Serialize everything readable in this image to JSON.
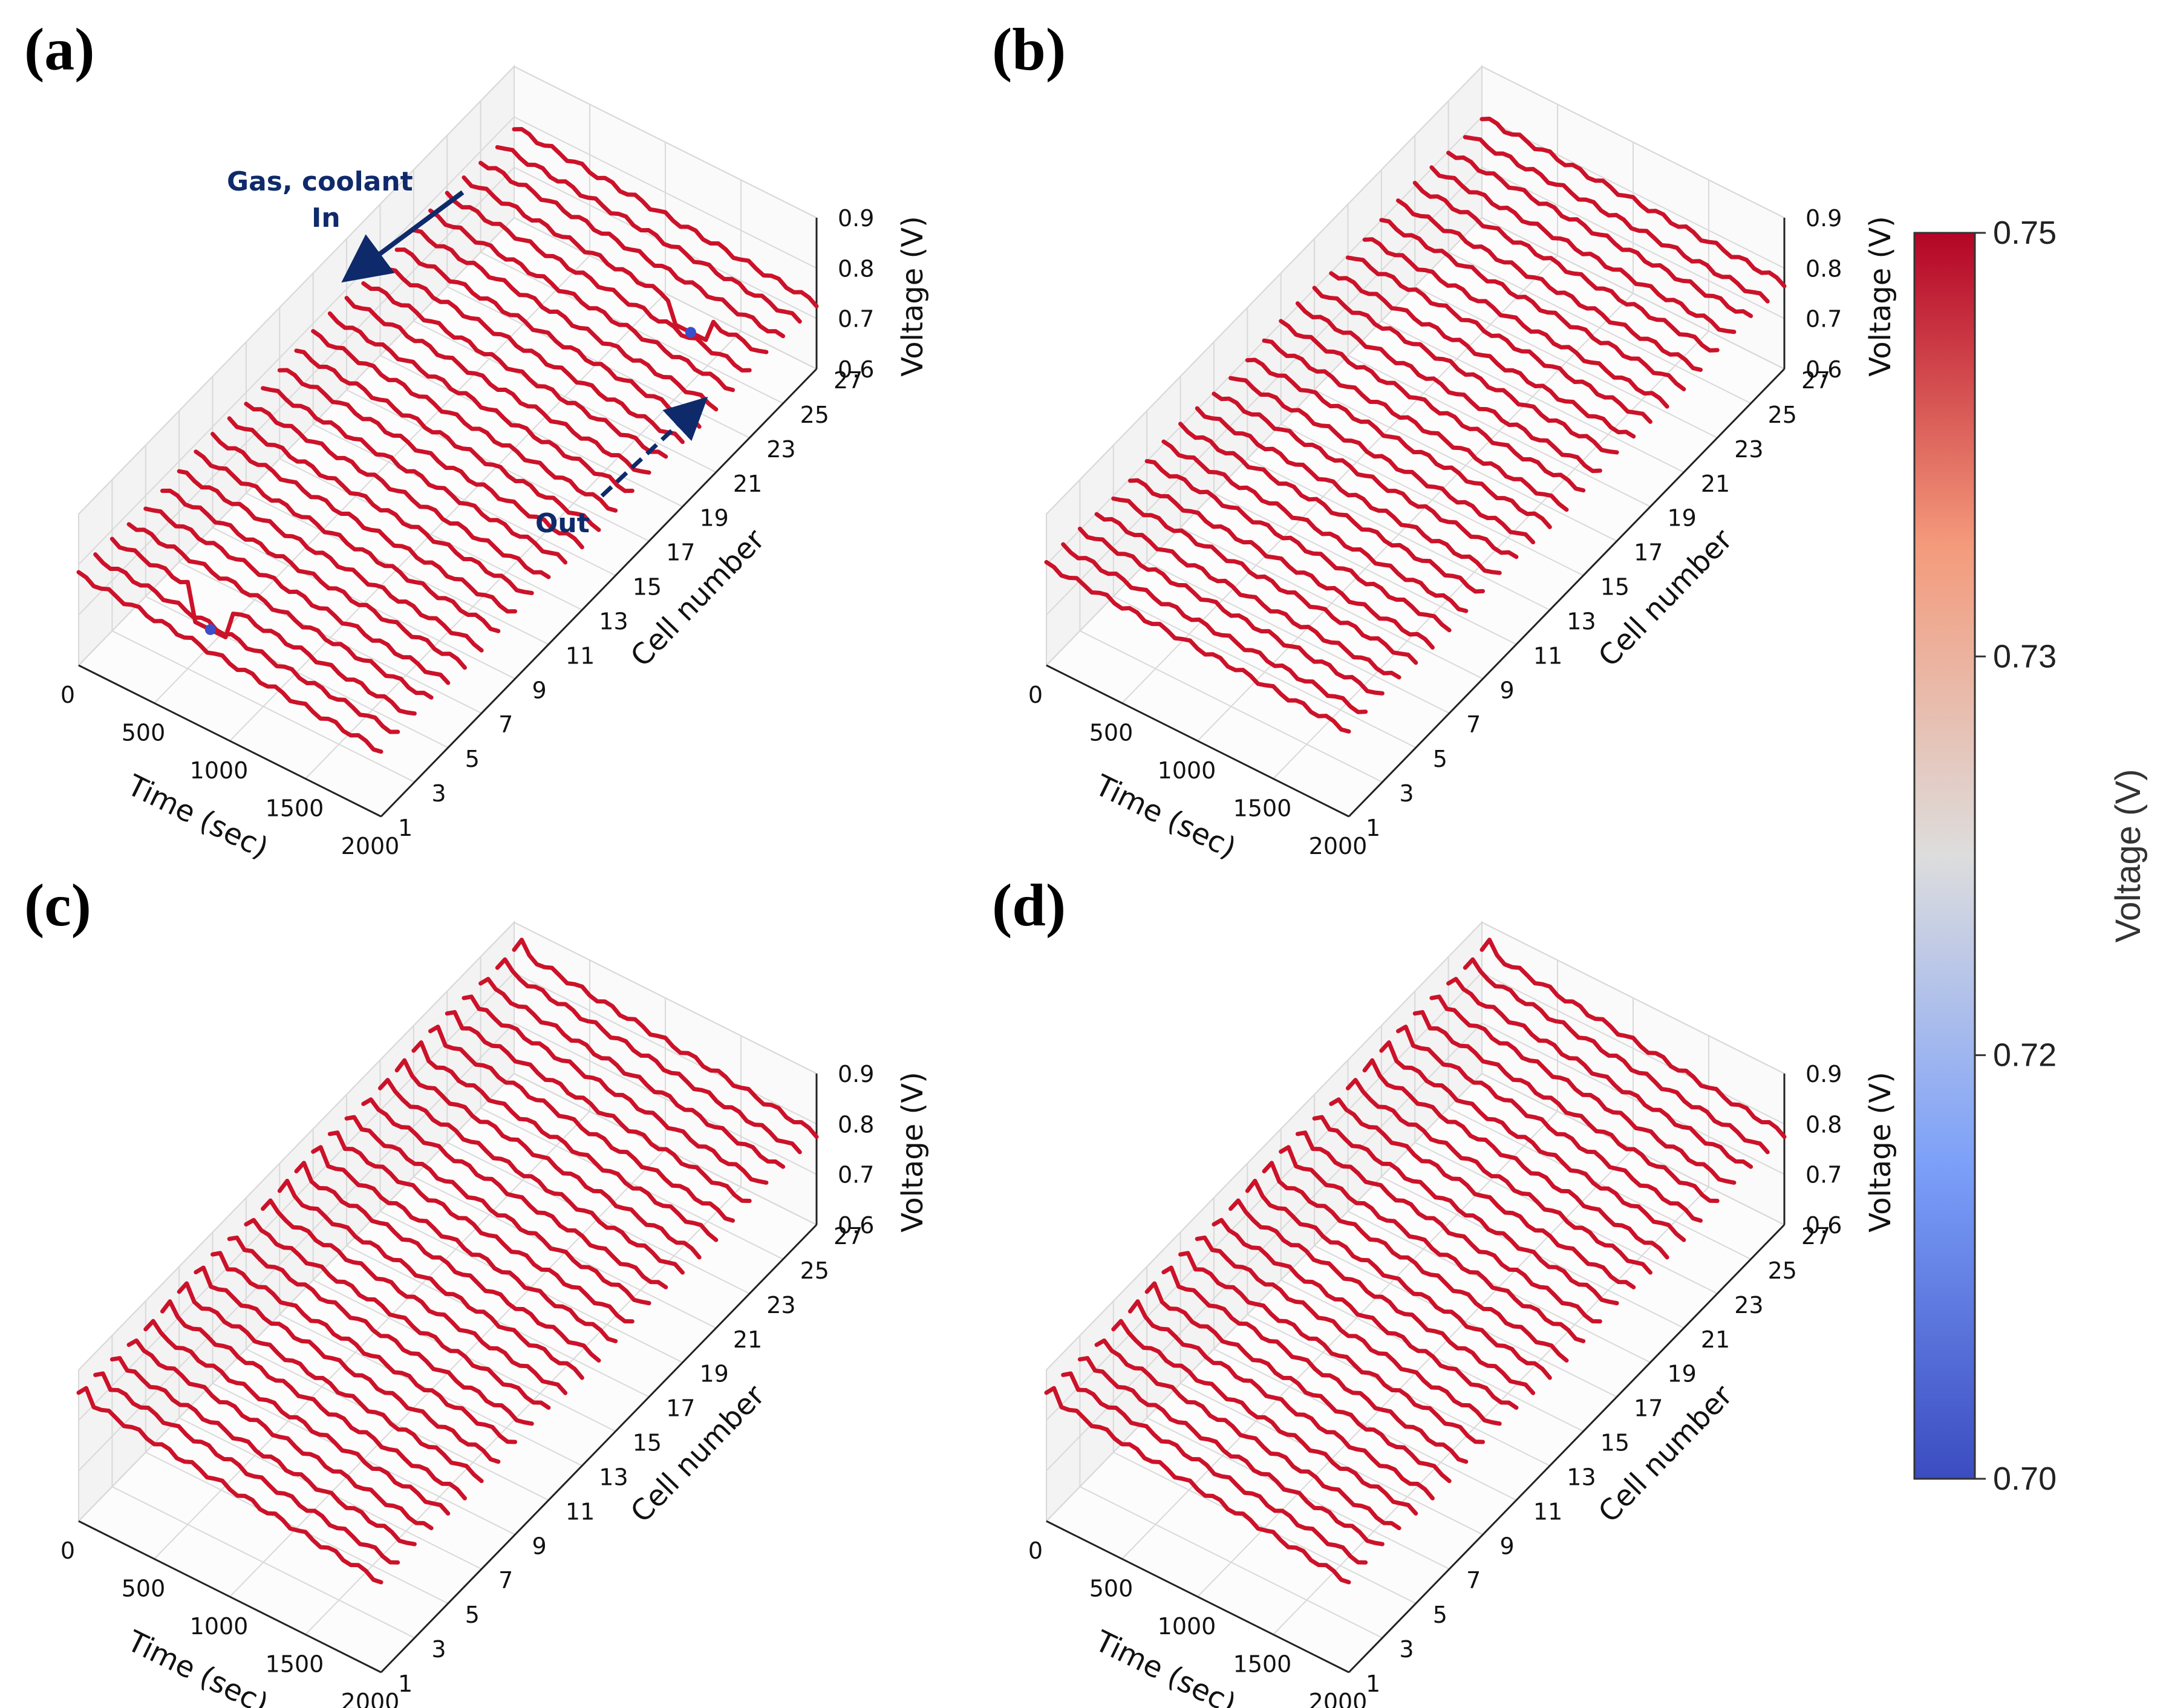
{
  "colors": {
    "red": "#cc1229",
    "mid": "#dcdcdc",
    "blue": "#3a4fc9",
    "annotation": "#0f2a6b"
  },
  "chart_data": {
    "type": "line3d",
    "colorbar": {
      "label": "Voltage (V)",
      "range": [
        0.7,
        0.75
      ],
      "ticks": [
        "0.75",
        "0.73",
        "0.72",
        "0.70"
      ],
      "tick_values": [
        0.75,
        0.733,
        0.717,
        0.7
      ]
    },
    "panels": [
      {
        "label": "(a)",
        "xlabel": "Time (sec)",
        "ylabel": "Cell number",
        "zlabel": "Voltage (V)",
        "x_ticks": [
          "0",
          "500",
          "1000",
          "1500",
          "2000"
        ],
        "y_ticks": [
          "1",
          "3",
          "5",
          "7",
          "9",
          "11",
          "13",
          "15",
          "17",
          "19",
          "21",
          "23",
          "25",
          "27"
        ],
        "z_ticks": [
          "0.6",
          "0.7",
          "0.8",
          "0.9"
        ],
        "xlim": [
          0,
          2000
        ],
        "ylim": [
          1,
          27
        ],
        "zlim": [
          0.6,
          0.9
        ],
        "cells": 27,
        "start_voltage": 0.78,
        "end_voltage": 0.73,
        "annotations": {
          "gas_in_1": "Gas, coolant",
          "gas_in_2": "In",
          "out": "Out"
        },
        "anomalies": [
          {
            "cell": 3,
            "time": 650,
            "voltage": 0.7,
            "note": "dip"
          },
          {
            "cell": 24,
            "time": 1500,
            "voltage": 0.7,
            "note": "blue segment"
          }
        ]
      },
      {
        "label": "(b)",
        "xlabel": "Time (sec)",
        "ylabel": "Cell number",
        "zlabel": "Voltage (V)",
        "x_ticks": [
          "0",
          "500",
          "1000",
          "1500",
          "2000"
        ],
        "y_ticks": [
          "1",
          "3",
          "5",
          "7",
          "9",
          "11",
          "13",
          "15",
          "17",
          "19",
          "21",
          "23",
          "25",
          "27"
        ],
        "z_ticks": [
          "0.6",
          "0.7",
          "0.8",
          "0.9"
        ],
        "xlim": [
          0,
          2000
        ],
        "ylim": [
          1,
          27
        ],
        "zlim": [
          0.6,
          0.9
        ],
        "cells": 27,
        "start_voltage": 0.8,
        "end_voltage": 0.77
      },
      {
        "label": "(c)",
        "xlabel": "Time (sec)",
        "ylabel": "Cell number",
        "zlabel": "Voltage (V)",
        "x_ticks": [
          "0",
          "500",
          "1000",
          "1500",
          "2000"
        ],
        "y_ticks": [
          "1",
          "3",
          "5",
          "7",
          "9",
          "11",
          "13",
          "15",
          "17",
          "19",
          "21",
          "23",
          "25",
          "27"
        ],
        "z_ticks": [
          "0.6",
          "0.7",
          "0.8",
          "0.9"
        ],
        "xlim": [
          0,
          2000
        ],
        "ylim": [
          1,
          27
        ],
        "zlim": [
          0.6,
          0.9
        ],
        "cells": 27,
        "start_voltage": 0.85,
        "end_voltage": 0.78
      },
      {
        "label": "(d)",
        "xlabel": "Time (sec)",
        "ylabel": "Cell number",
        "zlabel": "Voltage (V)",
        "x_ticks": [
          "0",
          "500",
          "1000",
          "1500",
          "2000"
        ],
        "y_ticks": [
          "1",
          "3",
          "5",
          "7",
          "9",
          "11",
          "13",
          "15",
          "17",
          "19",
          "21",
          "23",
          "25",
          "27"
        ],
        "z_ticks": [
          "0.6",
          "0.7",
          "0.8",
          "0.9"
        ],
        "xlim": [
          0,
          2000
        ],
        "ylim": [
          1,
          27
        ],
        "zlim": [
          0.6,
          0.9
        ],
        "cells": 27,
        "start_voltage": 0.85,
        "end_voltage": 0.78
      }
    ]
  }
}
